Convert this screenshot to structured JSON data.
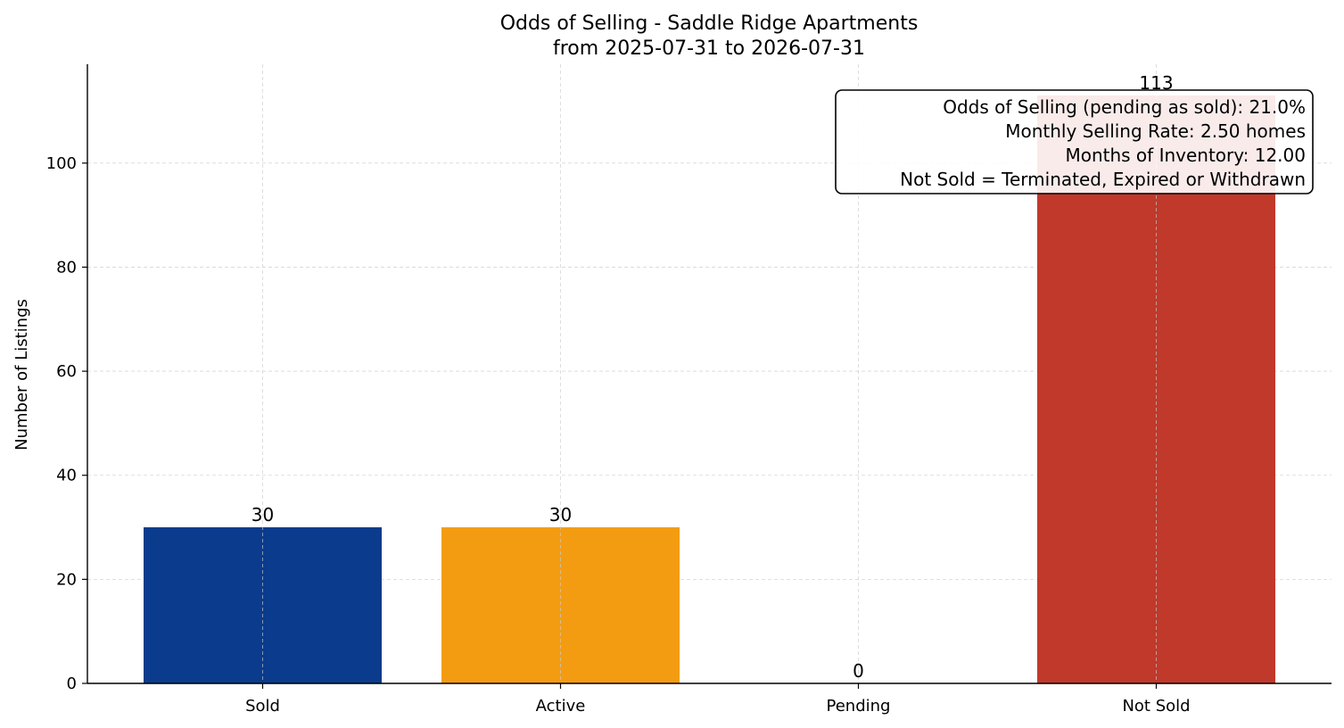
{
  "chart_data": {
    "type": "bar",
    "title": "Odds of Selling - Saddle Ridge Apartments",
    "subtitle": "from 2025-07-31 to 2026-07-31",
    "xlabel": "",
    "ylabel": "Number of Listings",
    "categories": [
      "Sold",
      "Active",
      "Pending",
      "Not Sold"
    ],
    "values": [
      30,
      30,
      0,
      113
    ],
    "value_labels": [
      "30",
      "30",
      "0",
      "113"
    ],
    "colors": [
      "#0b3b8c",
      "#f39c12",
      "#2e7d32",
      "#c0392b"
    ],
    "ylim": [
      0,
      119
    ],
    "yticks": [
      0,
      20,
      40,
      60,
      80,
      100
    ],
    "grid": true,
    "annotation": {
      "placement": "top-right",
      "lines": [
        "Odds of Selling (pending as sold): 21.0%",
        "Monthly Selling Rate: 2.50 homes",
        "Months of Inventory: 12.00",
        "Not Sold = Terminated, Expired or Withdrawn"
      ]
    }
  }
}
